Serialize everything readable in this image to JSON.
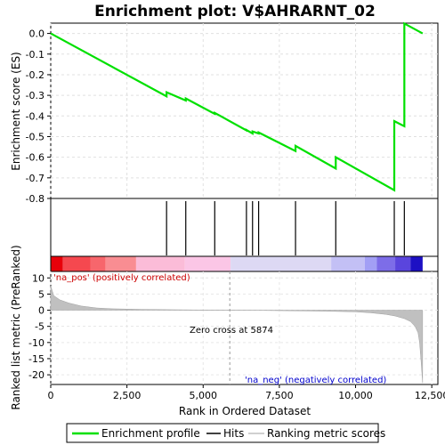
{
  "chart_data": {
    "type": "line",
    "title": "Enrichment plot: V$AHRARNT_02",
    "panels": {
      "enrichment": {
        "ylabel": "Enrichment score (ES)",
        "ylim": [
          -0.8,
          0.05
        ],
        "yticks": [
          "0.0",
          "-0.1",
          "-0.2",
          "-0.3",
          "-0.4",
          "-0.5",
          "-0.6",
          "-0.7",
          "-0.8"
        ],
        "ytick_values": [
          0.0,
          -0.1,
          -0.2,
          -0.3,
          -0.4,
          -0.5,
          -0.6,
          -0.7,
          -0.8
        ],
        "series": [
          {
            "name": "Enrichment profile",
            "color": "#00e000",
            "x": [
              0,
              3800,
              3800,
              4430,
              4430,
              5380,
              5380,
              6420,
              6420,
              6620,
              6620,
              6820,
              6820,
              8030,
              8030,
              9350,
              9350,
              11270,
              11270,
              11600,
              11600,
              12200
            ],
            "y": [
              0.0,
              -0.305,
              -0.285,
              -0.325,
              -0.315,
              -0.39,
              -0.385,
              -0.47,
              -0.468,
              -0.485,
              -0.475,
              -0.485,
              -0.48,
              -0.57,
              -0.545,
              -0.655,
              -0.6,
              -0.76,
              -0.425,
              -0.45,
              0.048,
              0.0
            ]
          }
        ]
      },
      "hits": {
        "positions": [
          3800,
          4430,
          5380,
          6420,
          6620,
          6820,
          8030,
          9350,
          11270,
          11600
        ]
      },
      "ranked_metric": {
        "ylabel": "Ranked list metric (PreRanked)",
        "ylim": [
          -23,
          12
        ],
        "yticks": [
          "10",
          "5",
          "0",
          "-5",
          "-10",
          "-15",
          "-20"
        ],
        "ytick_values": [
          10,
          5,
          0,
          -5,
          -10,
          -15,
          -20
        ],
        "profile_x": [
          0,
          100,
          300,
          600,
          1000,
          1500,
          2000,
          3000,
          4000,
          5000,
          5874,
          7000,
          8000,
          9000,
          10000,
          10500,
          11000,
          11300,
          11600,
          11800,
          11950,
          12050,
          12100,
          12150,
          12200
        ],
        "profile_y": [
          7.5,
          4.5,
          3.2,
          2.2,
          1.3,
          0.7,
          0.45,
          0.25,
          0.15,
          0.06,
          0.0,
          -0.08,
          -0.18,
          -0.3,
          -0.5,
          -0.8,
          -1.3,
          -1.8,
          -2.6,
          -3.5,
          -5.0,
          -7.0,
          -10.0,
          -16.0,
          -22.5
        ],
        "zero_cross_label": "Zero cross at 5874",
        "zero_cross_x": 5874,
        "pos_label": "'na_pos' (positively correlated)",
        "neg_label": "'na_neg' (negatively correlated)"
      }
    },
    "xaxis": {
      "label": "Rank in Ordered Dataset",
      "xlim": [
        0,
        12700
      ],
      "ticks": [
        "0",
        "2,500",
        "5,000",
        "7,500",
        "10,000",
        "12,500"
      ],
      "tick_values": [
        0,
        2500,
        5000,
        7500,
        10000,
        12500
      ]
    },
    "colorbar": {
      "segments": [
        {
          "x0": 0,
          "x1": 400,
          "color": "#e8000a"
        },
        {
          "x0": 400,
          "x1": 1300,
          "color": "#f5484f"
        },
        {
          "x0": 1300,
          "x1": 1800,
          "color": "#f7666c"
        },
        {
          "x0": 1800,
          "x1": 2800,
          "color": "#f98d92"
        },
        {
          "x0": 2800,
          "x1": 4400,
          "color": "#fbbcd8"
        },
        {
          "x0": 4400,
          "x1": 5900,
          "color": "#fbc6e6"
        },
        {
          "x0": 5900,
          "x1": 9200,
          "color": "#ddd9f4"
        },
        {
          "x0": 9200,
          "x1": 10300,
          "color": "#c3c0f5"
        },
        {
          "x0": 10300,
          "x1": 10700,
          "color": "#a29ff5"
        },
        {
          "x0": 10700,
          "x1": 11300,
          "color": "#7d6de8"
        },
        {
          "x0": 11300,
          "x1": 11800,
          "color": "#5a45dd"
        },
        {
          "x0": 11800,
          "x1": 12200,
          "color": "#1d10c4"
        }
      ]
    },
    "legend": {
      "entries": [
        {
          "label": "Enrichment profile",
          "color": "#00e000"
        },
        {
          "label": "Hits",
          "color": "#000000"
        },
        {
          "label": "Ranking metric scores",
          "color": "#c0c0c0"
        }
      ]
    }
  }
}
